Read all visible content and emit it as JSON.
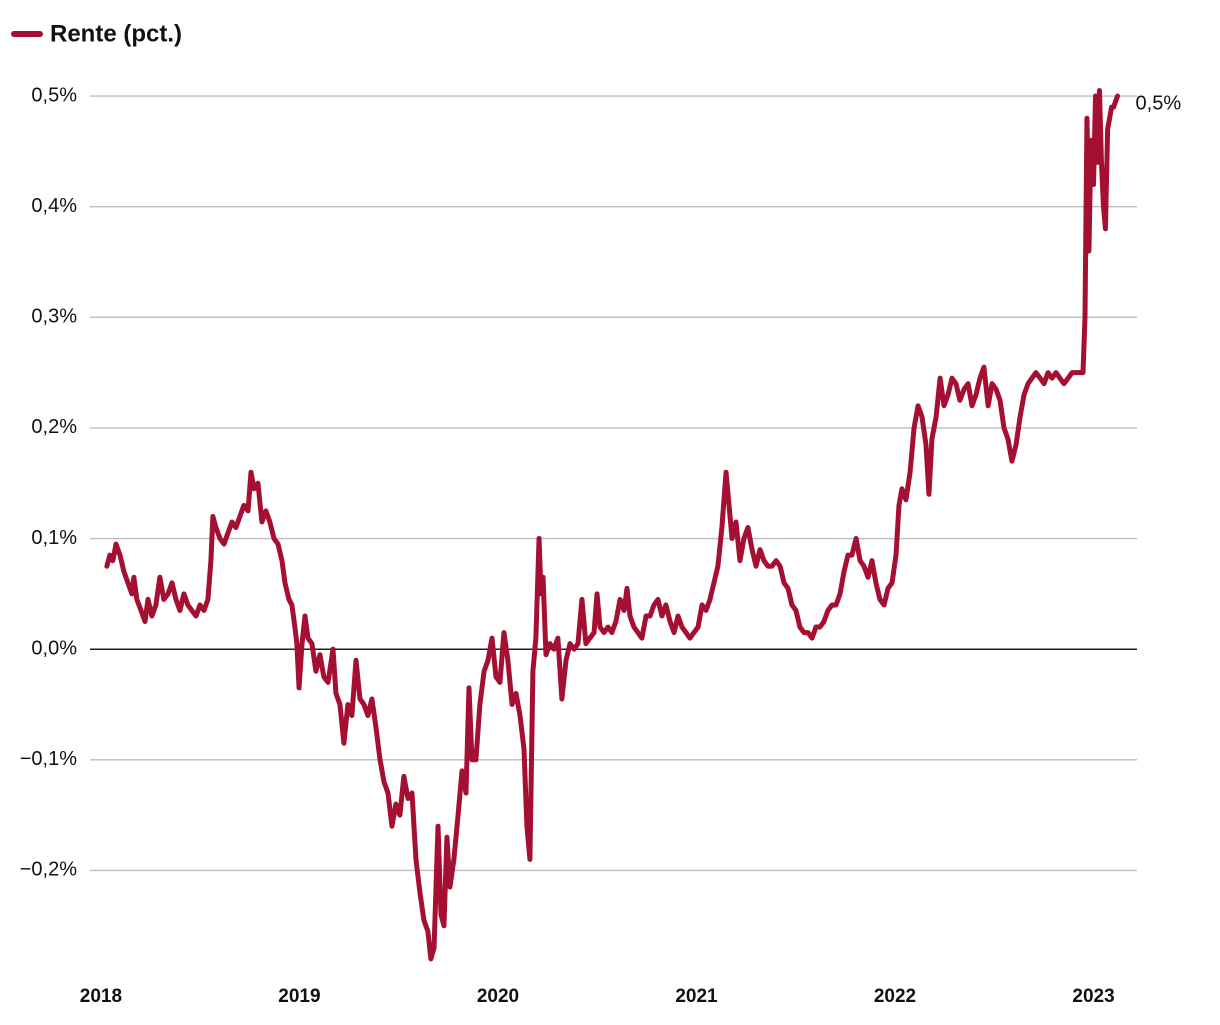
{
  "chart_data": {
    "type": "line",
    "legend": "top-left",
    "grid": true,
    "xlim": [
      2017.945,
      2023.219
    ],
    "xticks": [
      2018,
      2019,
      2020,
      2021,
      2022,
      2023
    ],
    "ylim": [
      -0.29,
      0.51
    ],
    "yticks": [
      {
        "value": -0.2,
        "label": "−0,2%"
      },
      {
        "value": -0.1,
        "label": "−0,1%"
      },
      {
        "value": 0,
        "label": "0,0%"
      },
      {
        "value": 0.1,
        "label": "0,1%"
      },
      {
        "value": 0.2,
        "label": "0,2%"
      },
      {
        "value": 0.3,
        "label": "0,3%"
      },
      {
        "value": 0.4,
        "label": "0,4%"
      },
      {
        "value": 0.5,
        "label": "0,5%"
      }
    ],
    "x": [
      2018.03,
      2018.045,
      2018.06,
      2018.076,
      2018.096,
      2018.116,
      2018.136,
      2018.156,
      2018.166,
      2018.181,
      2018.202,
      2018.222,
      2018.237,
      2018.257,
      2018.277,
      2018.297,
      2018.317,
      2018.338,
      2018.358,
      2018.378,
      2018.398,
      2018.418,
      2018.438,
      2018.458,
      2018.479,
      2018.499,
      2018.519,
      2018.539,
      2018.554,
      2018.564,
      2018.579,
      2018.6,
      2018.62,
      2018.64,
      2018.66,
      2018.68,
      2018.7,
      2018.72,
      2018.741,
      2018.756,
      2018.771,
      2018.791,
      2018.811,
      2018.831,
      2018.851,
      2018.872,
      2018.892,
      2018.912,
      2018.927,
      2018.947,
      2018.962,
      2018.977,
      2018.987,
      2018.998,
      2019.013,
      2019.028,
      2019.043,
      2019.063,
      2019.083,
      2019.103,
      2019.123,
      2019.144,
      2019.169,
      2019.184,
      2019.204,
      2019.224,
      2019.244,
      2019.264,
      2019.285,
      2019.305,
      2019.325,
      2019.345,
      2019.365,
      2019.385,
      2019.406,
      2019.426,
      2019.446,
      2019.466,
      2019.486,
      2019.506,
      2019.526,
      2019.547,
      2019.567,
      2019.587,
      2019.607,
      2019.627,
      2019.647,
      2019.662,
      2019.678,
      2019.698,
      2019.713,
      2019.728,
      2019.743,
      2019.758,
      2019.778,
      2019.799,
      2019.819,
      2019.839,
      2019.854,
      2019.869,
      2019.889,
      2019.909,
      2019.93,
      2019.95,
      2019.97,
      2019.99,
      2020.01,
      2020.03,
      2020.05,
      2020.071,
      2020.091,
      2020.111,
      2020.131,
      2020.146,
      2020.161,
      2020.176,
      2020.191,
      2020.207,
      2020.217,
      2020.227,
      2020.242,
      2020.262,
      2020.282,
      2020.302,
      2020.322,
      2020.343,
      2020.363,
      2020.383,
      2020.403,
      2020.423,
      2020.443,
      2020.463,
      2020.484,
      2020.499,
      2020.514,
      2020.534,
      2020.554,
      2020.574,
      2020.594,
      2020.615,
      2020.635,
      2020.65,
      2020.665,
      2020.685,
      2020.705,
      2020.725,
      2020.746,
      2020.766,
      2020.786,
      2020.806,
      2020.826,
      2020.846,
      2020.867,
      2020.887,
      2020.907,
      2020.927,
      2020.947,
      2020.967,
      2020.987,
      2021.008,
      2021.028,
      2021.048,
      2021.068,
      2021.088,
      2021.108,
      2021.128,
      2021.149,
      2021.164,
      2021.179,
      2021.199,
      2021.219,
      2021.239,
      2021.259,
      2021.28,
      2021.3,
      2021.32,
      2021.34,
      2021.36,
      2021.38,
      2021.401,
      2021.421,
      2021.441,
      2021.461,
      2021.481,
      2021.501,
      2021.521,
      2021.542,
      2021.562,
      2021.582,
      2021.602,
      2021.622,
      2021.642,
      2021.662,
      2021.683,
      2021.703,
      2021.723,
      2021.743,
      2021.763,
      2021.783,
      2021.804,
      2021.824,
      2021.844,
      2021.864,
      2021.884,
      2021.904,
      2021.924,
      2021.945,
      2021.965,
      2021.985,
      2022.005,
      2022.02,
      2022.035,
      2022.055,
      2022.076,
      2022.096,
      2022.116,
      2022.136,
      2022.156,
      2022.171,
      2022.186,
      2022.207,
      2022.227,
      2022.247,
      2022.267,
      2022.287,
      2022.307,
      2022.327,
      2022.348,
      2022.368,
      2022.388,
      2022.408,
      2022.428,
      2022.448,
      2022.469,
      2022.489,
      2022.509,
      2022.529,
      2022.549,
      2022.569,
      2022.589,
      2022.61,
      2022.63,
      2022.65,
      2022.67,
      2022.69,
      2022.71,
      2022.731,
      2022.751,
      2022.771,
      2022.791,
      2022.811,
      2022.831,
      2022.851,
      2022.872,
      2022.892,
      2022.912,
      2022.932,
      2022.947,
      2022.957,
      2022.967,
      2022.977,
      2022.987,
      2023.0,
      2023.01,
      2023.02,
      2023.03,
      2023.04,
      2023.05,
      2023.06,
      2023.071,
      2023.081,
      2023.091,
      2023.101,
      2023.111,
      2023.121
    ],
    "series": [
      {
        "name": "Rente (pct.)",
        "color": "#a50f32",
        "last_label": "0,5%",
        "values": [
          0.075,
          0.085,
          0.08,
          0.095,
          0.085,
          0.07,
          0.06,
          0.05,
          0.065,
          0.045,
          0.035,
          0.025,
          0.045,
          0.03,
          0.04,
          0.065,
          0.045,
          0.05,
          0.06,
          0.045,
          0.035,
          0.05,
          0.04,
          0.035,
          0.03,
          0.04,
          0.035,
          0.045,
          0.08,
          0.12,
          0.11,
          0.1,
          0.095,
          0.105,
          0.115,
          0.11,
          0.12,
          0.13,
          0.125,
          0.16,
          0.145,
          0.15,
          0.115,
          0.125,
          0.115,
          0.1,
          0.095,
          0.08,
          0.06,
          0.045,
          0.04,
          0.02,
          0.005,
          -0.035,
          0.005,
          0.03,
          0.01,
          0.005,
          -0.02,
          -0.005,
          -0.025,
          -0.03,
          0.0,
          -0.04,
          -0.05,
          -0.085,
          -0.05,
          -0.06,
          -0.01,
          -0.045,
          -0.05,
          -0.06,
          -0.045,
          -0.07,
          -0.1,
          -0.12,
          -0.13,
          -0.16,
          -0.14,
          -0.15,
          -0.115,
          -0.135,
          -0.13,
          -0.19,
          -0.22,
          -0.245,
          -0.255,
          -0.28,
          -0.27,
          -0.16,
          -0.24,
          -0.25,
          -0.17,
          -0.215,
          -0.19,
          -0.15,
          -0.11,
          -0.13,
          -0.035,
          -0.1,
          -0.1,
          -0.05,
          -0.02,
          -0.01,
          0.01,
          -0.025,
          -0.03,
          0.015,
          -0.01,
          -0.05,
          -0.04,
          -0.06,
          -0.09,
          -0.16,
          -0.19,
          -0.02,
          0.01,
          0.1,
          0.05,
          0.065,
          -0.005,
          0.005,
          0.0,
          0.01,
          -0.045,
          -0.01,
          0.005,
          0.0,
          0.005,
          0.045,
          0.005,
          0.01,
          0.015,
          0.05,
          0.02,
          0.015,
          0.02,
          0.015,
          0.025,
          0.045,
          0.035,
          0.055,
          0.03,
          0.02,
          0.015,
          0.01,
          0.03,
          0.03,
          0.04,
          0.045,
          0.03,
          0.04,
          0.025,
          0.015,
          0.03,
          0.02,
          0.015,
          0.01,
          0.015,
          0.02,
          0.04,
          0.035,
          0.045,
          0.06,
          0.075,
          0.11,
          0.16,
          0.13,
          0.1,
          0.115,
          0.08,
          0.1,
          0.11,
          0.09,
          0.075,
          0.09,
          0.08,
          0.075,
          0.075,
          0.08,
          0.075,
          0.06,
          0.055,
          0.04,
          0.035,
          0.02,
          0.015,
          0.015,
          0.01,
          0.02,
          0.02,
          0.025,
          0.035,
          0.04,
          0.04,
          0.05,
          0.07,
          0.085,
          0.085,
          0.1,
          0.08,
          0.075,
          0.065,
          0.08,
          0.06,
          0.045,
          0.04,
          0.055,
          0.06,
          0.085,
          0.13,
          0.145,
          0.135,
          0.16,
          0.2,
          0.22,
          0.21,
          0.185,
          0.14,
          0.19,
          0.21,
          0.245,
          0.22,
          0.23,
          0.245,
          0.24,
          0.225,
          0.235,
          0.24,
          0.22,
          0.23,
          0.245,
          0.255,
          0.22,
          0.24,
          0.235,
          0.225,
          0.2,
          0.19,
          0.17,
          0.185,
          0.21,
          0.23,
          0.24,
          0.245,
          0.25,
          0.245,
          0.24,
          0.25,
          0.245,
          0.25,
          0.245,
          0.24,
          0.245,
          0.25,
          0.25,
          0.25,
          0.25,
          0.3,
          0.48,
          0.36,
          0.46,
          0.42,
          0.5,
          0.44,
          0.505,
          0.44,
          0.4,
          0.38,
          0.47,
          0.48,
          0.49,
          0.49,
          0.495,
          0.5
        ]
      }
    ]
  }
}
